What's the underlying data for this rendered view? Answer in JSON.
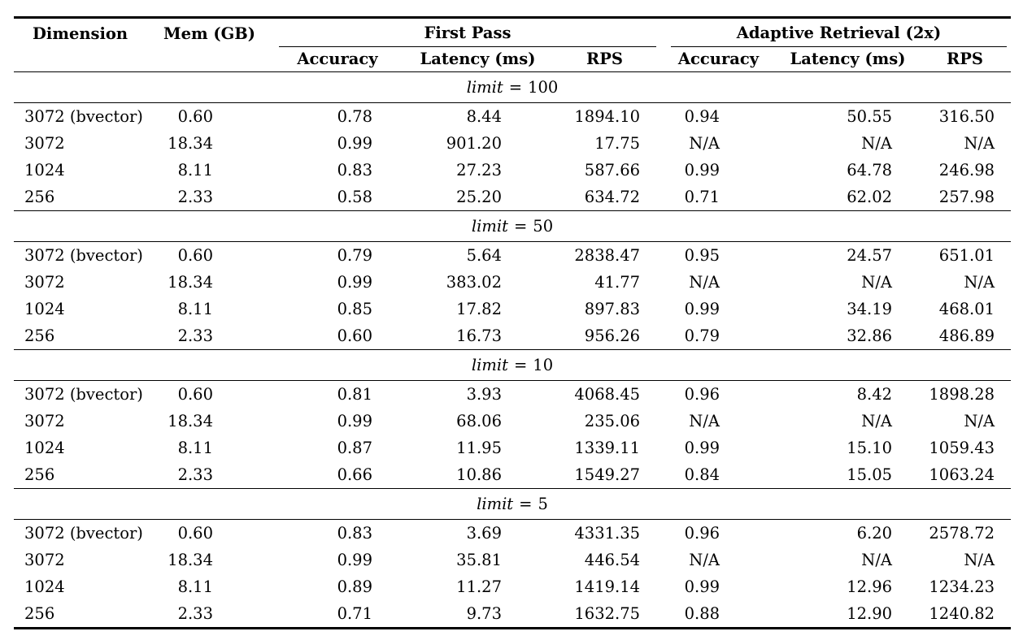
{
  "table": {
    "header": {
      "dimension": "Dimension",
      "memory": "Mem (GB)",
      "groups": {
        "first_pass": "First Pass",
        "adaptive": "Adaptive Retrieval (2x)"
      },
      "sub_columns": {
        "accuracy_fp": "Accuracy",
        "latency_fp": "Latency (ms)",
        "rps_fp": "RPS",
        "accuracy_ar": "Accuracy",
        "latency_ar": "Latency (ms)",
        "rps_ar": "RPS"
      }
    },
    "sections": [
      {
        "limit_label": {
          "variable": "limit",
          "relation": "=",
          "value": "100"
        },
        "rows": [
          [
            "3072 (bvector)",
            "0.60",
            "0.78",
            "8.44",
            "1894.10",
            "0.94",
            "50.55",
            "316.50"
          ],
          [
            "3072",
            "18.34",
            "0.99",
            "901.20",
            "17.75",
            "N/A",
            "N/A",
            "N/A"
          ],
          [
            "1024",
            "8.11",
            "0.83",
            "27.23",
            "587.66",
            "0.99",
            "64.78",
            "246.98"
          ],
          [
            "256",
            "2.33",
            "0.58",
            "25.20",
            "634.72",
            "0.71",
            "62.02",
            "257.98"
          ]
        ]
      },
      {
        "limit_label": {
          "variable": "limit",
          "relation": "=",
          "value": "50"
        },
        "rows": [
          [
            "3072 (bvector)",
            "0.60",
            "0.79",
            "5.64",
            "2838.47",
            "0.95",
            "24.57",
            "651.01"
          ],
          [
            "3072",
            "18.34",
            "0.99",
            "383.02",
            "41.77",
            "N/A",
            "N/A",
            "N/A"
          ],
          [
            "1024",
            "8.11",
            "0.85",
            "17.82",
            "897.83",
            "0.99",
            "34.19",
            "468.01"
          ],
          [
            "256",
            "2.33",
            "0.60",
            "16.73",
            "956.26",
            "0.79",
            "32.86",
            "486.89"
          ]
        ]
      },
      {
        "limit_label": {
          "variable": "limit",
          "relation": "=",
          "value": "10"
        },
        "rows": [
          [
            "3072 (bvector)",
            "0.60",
            "0.81",
            "3.93",
            "4068.45",
            "0.96",
            "8.42",
            "1898.28"
          ],
          [
            "3072",
            "18.34",
            "0.99",
            "68.06",
            "235.06",
            "N/A",
            "N/A",
            "N/A"
          ],
          [
            "1024",
            "8.11",
            "0.87",
            "11.95",
            "1339.11",
            "0.99",
            "15.10",
            "1059.43"
          ],
          [
            "256",
            "2.33",
            "0.66",
            "10.86",
            "1549.27",
            "0.84",
            "15.05",
            "1063.24"
          ]
        ]
      },
      {
        "limit_label": {
          "variable": "limit",
          "relation": "=",
          "value": "5"
        },
        "rows": [
          [
            "3072 (bvector)",
            "0.60",
            "0.83",
            "3.69",
            "4331.35",
            "0.96",
            "6.20",
            "2578.72"
          ],
          [
            "3072",
            "18.34",
            "0.99",
            "35.81",
            "446.54",
            "N/A",
            "N/A",
            "N/A"
          ],
          [
            "1024",
            "8.11",
            "0.89",
            "11.27",
            "1419.14",
            "0.99",
            "12.96",
            "1234.23"
          ],
          [
            "256",
            "2.33",
            "0.71",
            "9.73",
            "1632.75",
            "0.88",
            "12.90",
            "1240.82"
          ]
        ]
      }
    ]
  }
}
